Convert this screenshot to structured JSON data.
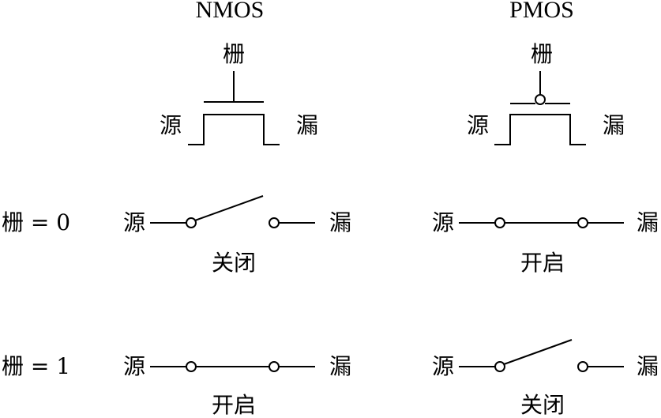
{
  "nmos": {
    "title": "NMOS",
    "gate": "栅",
    "source": "源",
    "drain": "漏"
  },
  "pmos": {
    "title": "PMOS",
    "gate": "栅",
    "source": "源",
    "drain": "漏"
  },
  "rows": [
    {
      "condition": "栅 = 0",
      "nmos": {
        "source": "源",
        "drain": "漏",
        "state": "关闭"
      },
      "pmos": {
        "source": "源",
        "drain": "漏",
        "state": "开启"
      }
    },
    {
      "condition": "栅 = 1",
      "nmos": {
        "source": "源",
        "drain": "漏",
        "state": "开启"
      },
      "pmos": {
        "source": "源",
        "drain": "漏",
        "state": "关闭"
      }
    }
  ]
}
